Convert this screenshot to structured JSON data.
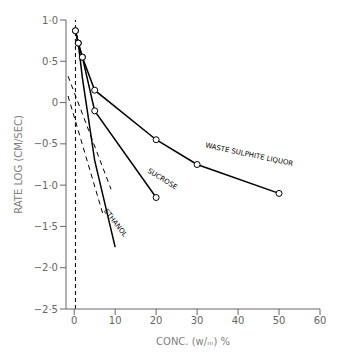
{
  "chart_data": {
    "type": "line",
    "xlabel": "CONC. (w/ₘ) %",
    "ylabel": "RATE LOG (CM/SEC)",
    "xlim": [
      -2,
      60
    ],
    "ylim": [
      -2.5,
      1.0
    ],
    "xticks": [
      0,
      10,
      20,
      30,
      40,
      50,
      60
    ],
    "yticks": [
      {
        "value": 1.0,
        "label": "1·0"
      },
      {
        "value": 0.5,
        "label": "0·5"
      },
      0,
      {
        "value": -0.5,
        "label": "−0·5"
      },
      {
        "value": -1.0,
        "label": "−1·0"
      },
      {
        "value": -1.5,
        "label": "−1·5"
      },
      {
        "value": -2.0,
        "label": "−2·0"
      },
      {
        "value": -2.5,
        "label": "−2·5"
      }
    ],
    "grid": false,
    "vline": {
      "x": 0.3,
      "color": "#000000",
      "line_style": "dashed"
    },
    "series": [
      {
        "x": [
          -1.5,
          9.0
        ],
        "values": [
          0.32,
          -1.05
        ],
        "color": "#000000",
        "line_style": "dashed",
        "marker": "none"
      },
      {
        "x": [
          -1.5,
          7.0
        ],
        "values": [
          0.08,
          -1.35
        ],
        "color": "#000000",
        "line_style": "dashed",
        "marker": "none"
      },
      {
        "x": [
          0.3,
          1.0,
          2.0,
          5.0,
          20.0,
          30.0,
          50.0
        ],
        "values": [
          0.87,
          0.72,
          0.55,
          0.15,
          -0.45,
          -0.75,
          -1.1
        ],
        "color": "#000000",
        "line_style": "solid",
        "marker": "o"
      },
      {
        "x": [
          0.3,
          1.0,
          2.0,
          5.0,
          20.0
        ],
        "values": [
          0.87,
          0.72,
          0.55,
          -0.1,
          -1.15
        ],
        "color": "#000000",
        "line_style": "solid",
        "marker": "o"
      },
      {
        "x": [
          0.3,
          1.0,
          2.0,
          5.0,
          10.0
        ],
        "values": [
          0.87,
          0.72,
          0.3,
          -0.7,
          -1.75
        ],
        "color": "#000000",
        "line_style": "solid",
        "marker": "none"
      }
    ],
    "annotations": [
      {
        "text": "WASTE SULPHITE LIQUOR",
        "x": 32,
        "y": -0.52,
        "color": "#000000"
      },
      {
        "text": "SUCROSE",
        "x": 18,
        "y": -0.82,
        "color": "#000000"
      },
      {
        "text": "ETHANOL",
        "x": 7.5,
        "y": -1.3,
        "color": "#000000"
      }
    ]
  }
}
